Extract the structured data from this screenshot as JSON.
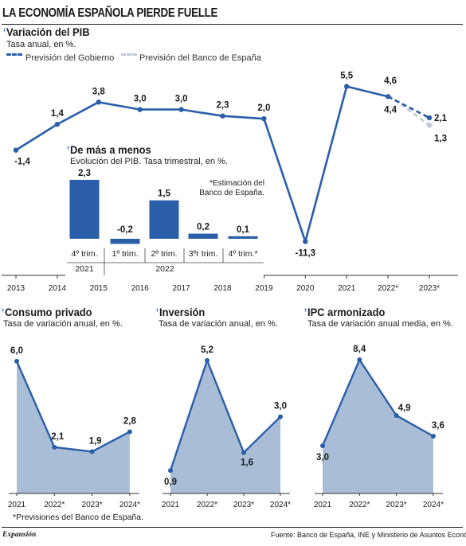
{
  "headline": "LA ECONOMÍA ESPAÑOLA PIERDE FUELLE",
  "footnote": "*Previsiones del Banco de España.",
  "brand": "Expansión",
  "source": "Fuente:  Banco de España, INE y Ministerio de Asuntos Económicos",
  "colors": {
    "line": "#2a5ea8",
    "bar": "#2a5ea8",
    "area": "#a9bdd6",
    "forecast_bank": "#c4cbd6"
  },
  "chart_data": [
    {
      "id": "pib",
      "type": "line",
      "title": "Variación del PIB",
      "subtitle": "Tasa anual, en %.",
      "legend": {
        "placement": "top-left",
        "entries": [
          "Previsión del Gobierno",
          "Previsión del Banco de España"
        ]
      },
      "categories": [
        "2013",
        "2014",
        "2015",
        "2016",
        "2017",
        "2018",
        "2019",
        "2020",
        "2021",
        "2022*",
        "2023*"
      ],
      "series": [
        {
          "name": "",
          "values": [
            -1.4,
            1.4,
            3.8,
            3.0,
            3.0,
            2.3,
            2.0,
            -11.3,
            5.5,
            4.4,
            null
          ],
          "labels": [
            "-1,4",
            "1,4",
            "3,8",
            "3,0",
            "3,0",
            "2,3",
            "2,0",
            "-11,3",
            "5,5",
            "4,4",
            ""
          ]
        },
        {
          "name": "Previsión del Gobierno",
          "values": [
            null,
            null,
            null,
            null,
            null,
            null,
            null,
            null,
            null,
            4.4,
            2.1
          ],
          "labels": [
            "",
            "",
            "",
            "",
            "",
            "",
            "",
            "",
            "",
            "",
            "2,1"
          ]
        },
        {
          "name": "Previsión del Banco de España",
          "values": [
            null,
            null,
            null,
            null,
            null,
            null,
            null,
            null,
            null,
            4.6,
            1.3
          ],
          "labels": [
            "",
            "",
            "",
            "",
            "",
            "",
            "",
            "",
            "",
            "4,6",
            "1,3"
          ]
        }
      ],
      "ylim": [
        -12,
        7
      ],
      "grid": false
    },
    {
      "id": "trimestral",
      "type": "bar",
      "title": "De más a menos",
      "subtitle": "Evolución del PIB. Tasa trimestral, en %.",
      "annotation": "*Estimación del Banco de España.",
      "categories": [
        "4º trim.",
        "1º trim.",
        "2º trim.",
        "3ºr trim.",
        "4º trim.*"
      ],
      "values": [
        2.3,
        -0.2,
        1.5,
        0.2,
        0.1
      ],
      "labels": [
        "2,3",
        "-0,2",
        "1,5",
        "0,2",
        "0,1"
      ],
      "years": [
        {
          "label": "2021",
          "span": [
            0,
            0
          ]
        },
        {
          "label": "2022",
          "span": [
            1,
            4
          ]
        }
      ],
      "ylim": [
        -0.5,
        2.8
      ]
    },
    {
      "id": "consumo",
      "type": "area",
      "title": "Consumo privado",
      "subtitle": "Tasa de variación anual, en %.",
      "categories": [
        "2021",
        "2022*",
        "2023*",
        "2024*"
      ],
      "values": [
        6.0,
        2.1,
        1.9,
        2.8
      ],
      "labels": [
        "6,0",
        "2,1",
        "1,9",
        "2,8"
      ],
      "ylim": [
        0,
        6.5
      ]
    },
    {
      "id": "inversion",
      "type": "area",
      "title": "Inversión",
      "subtitle": "Tasa de variación anual, en %.",
      "categories": [
        "2021",
        "2022*",
        "2023*",
        "2024*"
      ],
      "values": [
        0.9,
        5.2,
        1.6,
        3.0
      ],
      "labels": [
        "0,9",
        "5,2",
        "1,6",
        "3,0"
      ],
      "ylim": [
        0,
        5.6
      ]
    },
    {
      "id": "ipc",
      "type": "area",
      "title": "IPC armonizado",
      "subtitle": "Tasa de variación anual media, en %.",
      "categories": [
        "2021",
        "2022*",
        "2023*",
        "2024*"
      ],
      "values": [
        3.0,
        8.4,
        4.9,
        3.6
      ],
      "labels": [
        "3,0",
        "8,4",
        "4,9",
        "3,6"
      ],
      "ylim": [
        0,
        9.0
      ]
    }
  ]
}
